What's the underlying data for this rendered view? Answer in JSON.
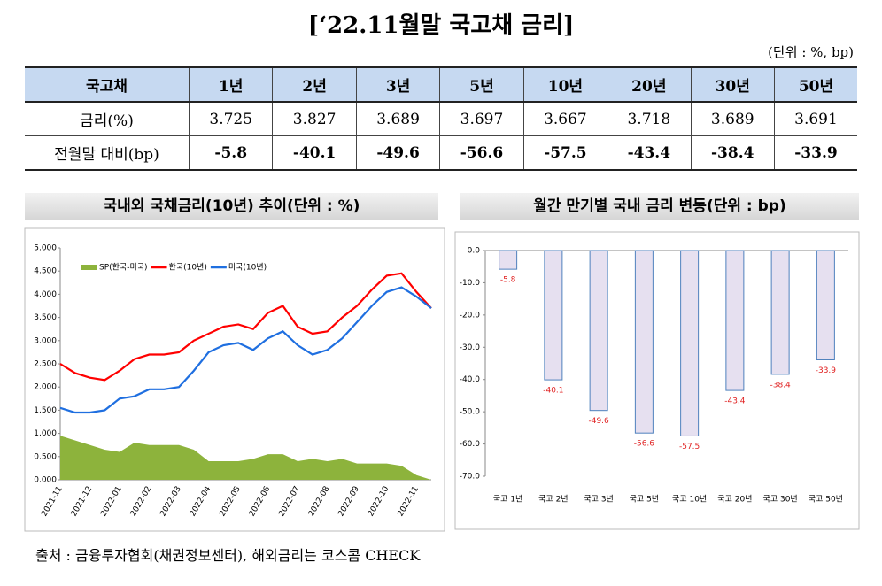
{
  "title": "[‘22.11월말 국고채 금리]",
  "unit": "(단위 : %, bp)",
  "table": {
    "header": [
      "국고채",
      "1년",
      "2년",
      "3년",
      "5년",
      "10년",
      "20년",
      "30년",
      "50년"
    ],
    "rows": [
      [
        "금리(%)",
        "3.725",
        "3.827",
        "3.689",
        "3.697",
        "3.667",
        "3.718",
        "3.689",
        "3.691"
      ],
      [
        "전월말 대비(bp)",
        "-5.8",
        "-40.1",
        "-49.6",
        "-56.6",
        "-57.5",
        "-43.4",
        "-38.4",
        "-33.9"
      ]
    ]
  },
  "chart_data": [
    {
      "type": "line",
      "title": "국내외 국채금리(10년) 추이(단위 : %)",
      "categories": [
        "2021-11",
        null,
        "2021-12",
        null,
        "2022-01",
        null,
        "2022-02",
        null,
        "2022-03",
        null,
        "2022-04",
        null,
        "2022-05",
        null,
        "2022-06",
        null,
        "2022-07",
        null,
        "2022-08",
        null,
        "2022-09",
        null,
        "2022-10",
        null,
        "2022-11",
        null
      ],
      "series": [
        {
          "name": "SP(한국-미국)",
          "color": "#8db33c",
          "area": true,
          "values": [
            0.95,
            0.85,
            0.75,
            0.65,
            0.6,
            0.8,
            0.75,
            0.75,
            0.75,
            0.65,
            0.4,
            0.4,
            0.4,
            0.45,
            0.55,
            0.55,
            0.4,
            0.45,
            0.4,
            0.45,
            0.35,
            0.35,
            0.35,
            0.3,
            0.1,
            0
          ]
        },
        {
          "name": "한국(10년)",
          "color": "#ff0000",
          "values": [
            2.5,
            2.3,
            2.2,
            2.15,
            2.35,
            2.6,
            2.7,
            2.7,
            2.75,
            3.0,
            3.15,
            3.3,
            3.35,
            3.25,
            3.6,
            3.75,
            3.3,
            3.15,
            3.2,
            3.5,
            3.75,
            4.1,
            4.4,
            4.45,
            4.05,
            3.7
          ]
        },
        {
          "name": "미국(10년)",
          "color": "#1f6fe0",
          "values": [
            1.55,
            1.45,
            1.45,
            1.5,
            1.75,
            1.8,
            1.95,
            1.95,
            2.0,
            2.35,
            2.75,
            2.9,
            2.95,
            2.8,
            3.05,
            3.2,
            2.9,
            2.7,
            2.8,
            3.05,
            3.4,
            3.75,
            4.05,
            4.15,
            3.95,
            3.7
          ]
        }
      ],
      "ylim": [
        0,
        5
      ],
      "yticks": [
        {
          "value": 0,
          "label": "0.000"
        },
        {
          "value": 0.5,
          "label": "0.500"
        },
        {
          "value": 1,
          "label": "1.000"
        },
        {
          "value": 1.5,
          "label": "1.500"
        },
        {
          "value": 2,
          "label": "2.000"
        },
        {
          "value": 2.5,
          "label": "2.500"
        },
        {
          "value": 3,
          "label": "3.000"
        },
        {
          "value": 3.5,
          "label": "3.500"
        },
        {
          "value": 4,
          "label": "4.000"
        },
        {
          "value": 4.5,
          "label": "4.500"
        },
        {
          "value": 5,
          "label": "5.000"
        }
      ],
      "grid": false
    },
    {
      "type": "bar",
      "title": "월간 만기별 국내 금리 변동(단위 : bp)",
      "categories": [
        "국고 1년",
        "국고 2년",
        "국고 3년",
        "국고 5년",
        "국고 10년",
        "국고 20년",
        "국고 30년",
        "국고 50년"
      ],
      "values": [
        -5.8,
        -40.1,
        -49.6,
        -56.6,
        -57.5,
        -43.4,
        -38.4,
        -33.9
      ],
      "color": "#e6e0f0",
      "stroke": "#4f81bd",
      "label_color": "#e02020",
      "ylim": [
        -70,
        0
      ],
      "yticks": [
        {
          "value": 0,
          "label": "0.0"
        },
        {
          "value": -10,
          "label": "-10.0"
        },
        {
          "value": -20,
          "label": "-20.0"
        },
        {
          "value": -30,
          "label": "-30.0"
        },
        {
          "value": -40,
          "label": "-40.0"
        },
        {
          "value": -50,
          "label": "-50.0"
        },
        {
          "value": -60,
          "label": "-60.0"
        },
        {
          "value": -70,
          "label": "-70.0"
        }
      ],
      "grid": false
    }
  ],
  "source": "출처 : 금융투자협회(채권정보센터), 해외금리는 코스콤 CHECK"
}
